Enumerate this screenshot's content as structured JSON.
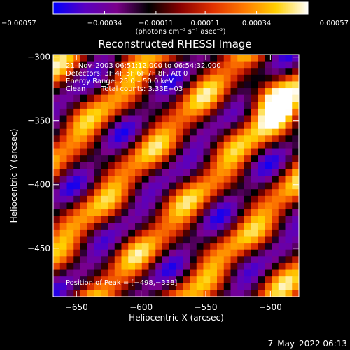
{
  "chart_data": {
    "type": "heatmap",
    "title": "Reconstructed RHESSI Image",
    "xlabel": "Heliocentric X (arcsec)",
    "ylabel": "Heliocentric Y (arcsec)",
    "xlim": [
      -668,
      -478
    ],
    "ylim": [
      -488,
      -298
    ],
    "x_ticks": [
      {
        "value": -650,
        "label": "−650"
      },
      {
        "value": -600,
        "label": "−600"
      },
      {
        "value": -550,
        "label": "−550"
      },
      {
        "value": -500,
        "label": "−500"
      }
    ],
    "y_ticks": [
      {
        "value": -300,
        "label": "−300"
      },
      {
        "value": -350,
        "label": "−350"
      },
      {
        "value": -400,
        "label": "−400"
      },
      {
        "value": -450,
        "label": "−450"
      }
    ],
    "colorbar": {
      "min": -0.00057,
      "max": 0.00057,
      "ticks": [
        {
          "value": -0.00057,
          "label": "−0.00057"
        },
        {
          "value": -0.00034,
          "label": "−0.00034"
        },
        {
          "value": -0.00011,
          "label": "−0.00011"
        },
        {
          "value": 0.00011,
          "label": "0.00011"
        },
        {
          "value": 0.00034,
          "label": "0.00034"
        },
        {
          "value": 0.00057,
          "label": "0.00057"
        }
      ],
      "unit_label": "(photons cm⁻² s⁻¹ asec⁻²)",
      "colors": [
        "#0000ff",
        "#5a00c0",
        "#7a008a",
        "#000000",
        "#8a0000",
        "#e03000",
        "#ff7a00",
        "#ffd000",
        "#ffffff"
      ]
    },
    "annotations": {
      "time_range": "21–Nov–2003 06:51:12.000 to 06:54:32.000",
      "detectors": "Detectors: 3F 4F 5F 6F 7F 8F, Att 0",
      "energy": "Energy Range: 25.0 – 50.0 keV",
      "clean": "Clean",
      "counts": "Total counts: 3.33E+03",
      "peak": "Position of Peak = [−498,−338]"
    },
    "peak": {
      "x": -498,
      "y": -338
    }
  },
  "footer": {
    "date": "7–May–2022 06:13"
  }
}
